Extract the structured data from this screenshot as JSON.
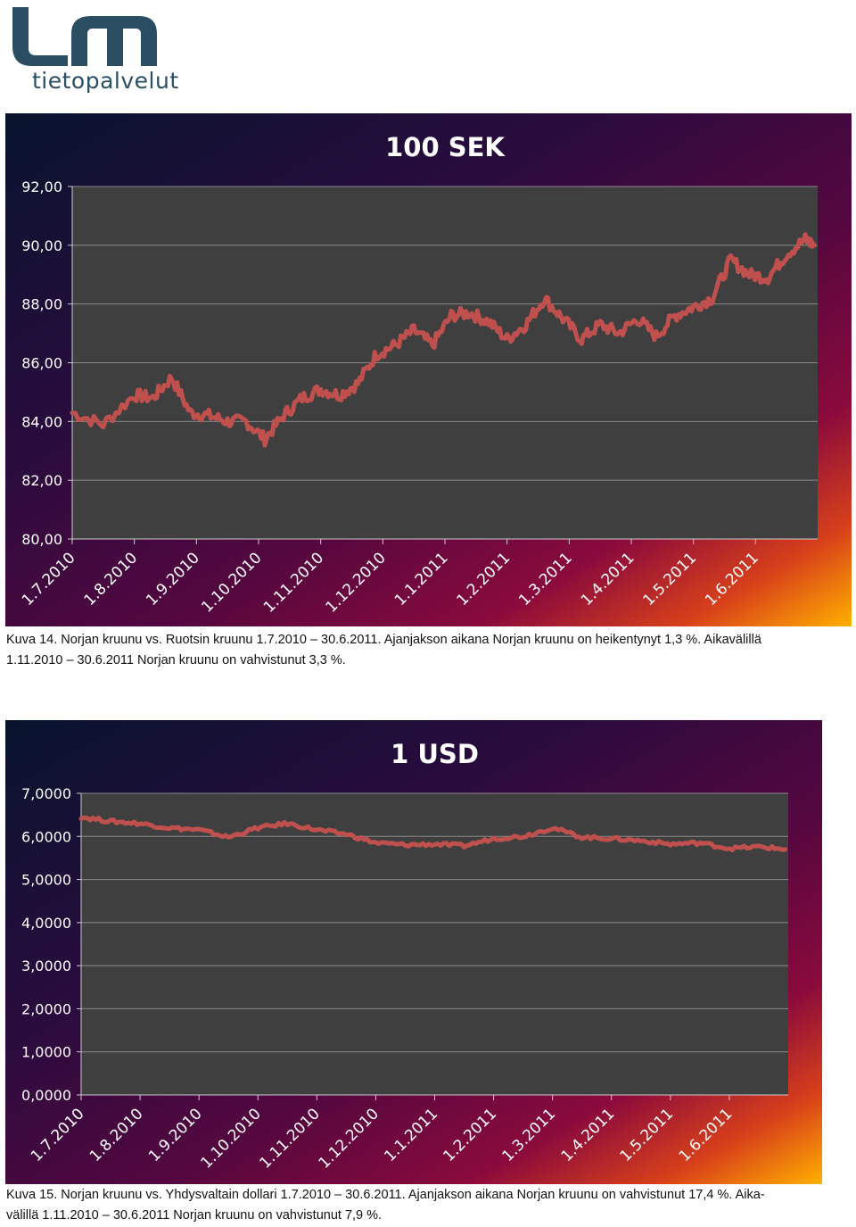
{
  "logo": {
    "text": "tietopalvelut",
    "letters": "lm"
  },
  "chart_data": [
    {
      "type": "line",
      "title": "100 SEK",
      "xlabel": "",
      "ylabel": "",
      "ylim": [
        80,
        92
      ],
      "y_ticks": [
        "80,00",
        "82,00",
        "84,00",
        "86,00",
        "88,00",
        "90,00",
        "92,00"
      ],
      "x_tick_labels": [
        "1.7.2010",
        "1.8.2010",
        "1.9.2010",
        "1.10.2010",
        "1.11.2010",
        "1.12.2010",
        "1.1.2011",
        "1.2.2011",
        "1.3.2011",
        "1.4.2011",
        "1.5.2011",
        "1.6.2011"
      ],
      "grid": true,
      "legend": "none",
      "series": [
        {
          "color": "#c0504d",
          "x": [
            0,
            0.5,
            1,
            1.3,
            1.6,
            1.9,
            2.2,
            2.5,
            2.8,
            3.1,
            3.4,
            3.7,
            4,
            4.3,
            4.6,
            4.9,
            5.2,
            5.5,
            5.8,
            6.1,
            6.4,
            6.7,
            7,
            7.3,
            7.6,
            7.9,
            8.2,
            8.5,
            8.8,
            9.1,
            9.4,
            9.7,
            10,
            10.3,
            10.6,
            10.9,
            11.2,
            11.5,
            11.8,
            11.95
          ],
          "y": [
            84.3,
            83.9,
            84.9,
            84.8,
            85.5,
            84.3,
            84.2,
            84.0,
            84.0,
            83.4,
            84.2,
            84.8,
            85.1,
            84.9,
            85.3,
            86.3,
            86.6,
            87.1,
            86.6,
            87.6,
            87.7,
            87.4,
            86.8,
            87.3,
            88.2,
            87.5,
            86.8,
            87.3,
            87.0,
            87.5,
            86.9,
            87.6,
            87.9,
            88.2,
            89.5,
            89.0,
            88.9,
            89.7,
            90.2,
            90.0
          ]
        }
      ],
      "x_index_note": ""
    },
    {
      "type": "line",
      "title": "1 USD",
      "xlabel": "",
      "ylabel": "",
      "ylim": [
        0,
        7
      ],
      "y_ticks": [
        "0,0000",
        "1,0000",
        "2,0000",
        "3,0000",
        "4,0000",
        "5,0000",
        "6,0000",
        "7,0000"
      ],
      "x_tick_labels": [
        "1.7.2010",
        "1.8.2010",
        "1.9.2010",
        "1.10.2010",
        "1.11.2010",
        "1.12.2010",
        "1.1.2011",
        "1.2.2011",
        "1.3.2011",
        "1.4.2011",
        "1.5.2011",
        "1.6.2011"
      ],
      "grid": true,
      "legend": "none",
      "series": [
        {
          "color": "#c0504d",
          "x": [
            0,
            0.5,
            1,
            1.5,
            2,
            2.5,
            3,
            3.5,
            4,
            4.5,
            5,
            5.5,
            6,
            6.5,
            7,
            7.5,
            8,
            8.5,
            9,
            9.5,
            10,
            10.5,
            11,
            11.5,
            11.95
          ],
          "y": [
            6.45,
            6.35,
            6.3,
            6.2,
            6.15,
            5.98,
            6.2,
            6.3,
            6.15,
            6.05,
            5.85,
            5.8,
            5.82,
            5.78,
            5.95,
            6.0,
            6.2,
            5.98,
            5.95,
            5.9,
            5.82,
            5.85,
            5.72,
            5.76,
            5.7
          ]
        }
      ]
    }
  ],
  "captions": [
    {
      "line1": "Kuva 14. Norjan kruunu vs. Ruotsin kruunu 1.7.2010 – 30.6.2011. Ajanjakson aikana Norjan kruunu on heikentynyt 1,3 %. Aikavälillä",
      "line2": "1.11.2010 – 30.6.2011 Norjan kruunu on vahvistunut 3,3 %."
    },
    {
      "line1": "Kuva 15. Norjan kruunu vs. Yhdysvaltain dollari 1.7.2010 – 30.6.2011. Ajanjakson aikana Norjan kruunu on vahvistunut 17,4 %. Aika-",
      "line2": "välillä 1.11.2010 – 30.6.2011 Norjan kruunu on vahvistunut 7,9 %."
    }
  ]
}
